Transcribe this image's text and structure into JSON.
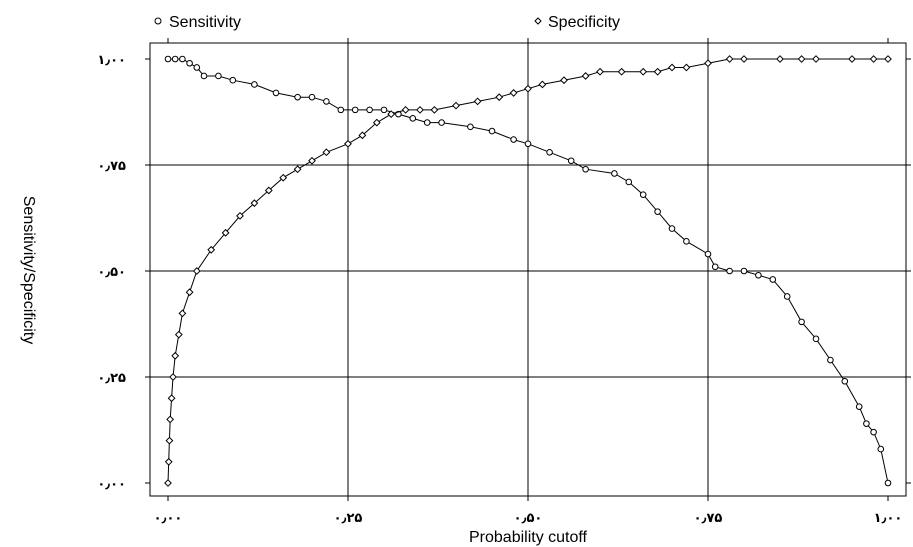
{
  "chart_data": {
    "type": "line",
    "title": "",
    "xlabel": "Probability cutoff",
    "ylabel": "Sensitivity/Specificity",
    "xlim": [
      0,
      1
    ],
    "ylim": [
      0,
      1
    ],
    "grid": true,
    "legend_position": "top",
    "x_ticks": [
      {
        "value": 0,
        "label": "۰٫۰۰"
      },
      {
        "value": 0.25,
        "label": "۰٫۲۵"
      },
      {
        "value": 0.5,
        "label": "۰٫۵۰"
      },
      {
        "value": 0.75,
        "label": "۰٫۷۵"
      },
      {
        "value": 1,
        "label": "۱٫۰۰"
      }
    ],
    "y_ticks": [
      {
        "value": 0,
        "label": "۰٫۰۰"
      },
      {
        "value": 0.25,
        "label": "۰٫۲۵"
      },
      {
        "value": 0.5,
        "label": "۰٫۵۰"
      },
      {
        "value": 0.75,
        "label": "۰٫۷۵"
      },
      {
        "value": 1,
        "label": "۱٫۰۰"
      }
    ],
    "series": [
      {
        "name": "Sensitivity",
        "marker": "circle",
        "color": "#000000",
        "points": [
          [
            0.0,
            1.0
          ],
          [
            0.01,
            1.0
          ],
          [
            0.02,
            1.0
          ],
          [
            0.03,
            0.99
          ],
          [
            0.04,
            0.98
          ],
          [
            0.05,
            0.96
          ],
          [
            0.07,
            0.96
          ],
          [
            0.09,
            0.95
          ],
          [
            0.12,
            0.94
          ],
          [
            0.15,
            0.92
          ],
          [
            0.18,
            0.91
          ],
          [
            0.2,
            0.91
          ],
          [
            0.22,
            0.9
          ],
          [
            0.24,
            0.88
          ],
          [
            0.26,
            0.88
          ],
          [
            0.28,
            0.88
          ],
          [
            0.3,
            0.88
          ],
          [
            0.32,
            0.87
          ],
          [
            0.34,
            0.86
          ],
          [
            0.36,
            0.85
          ],
          [
            0.38,
            0.85
          ],
          [
            0.42,
            0.84
          ],
          [
            0.45,
            0.83
          ],
          [
            0.48,
            0.81
          ],
          [
            0.5,
            0.8
          ],
          [
            0.53,
            0.78
          ],
          [
            0.56,
            0.76
          ],
          [
            0.58,
            0.74
          ],
          [
            0.62,
            0.73
          ],
          [
            0.64,
            0.71
          ],
          [
            0.66,
            0.68
          ],
          [
            0.68,
            0.64
          ],
          [
            0.7,
            0.6
          ],
          [
            0.72,
            0.57
          ],
          [
            0.75,
            0.54
          ],
          [
            0.76,
            0.51
          ],
          [
            0.78,
            0.5
          ],
          [
            0.8,
            0.5
          ],
          [
            0.82,
            0.49
          ],
          [
            0.84,
            0.48
          ],
          [
            0.86,
            0.44
          ],
          [
            0.88,
            0.38
          ],
          [
            0.9,
            0.34
          ],
          [
            0.92,
            0.29
          ],
          [
            0.94,
            0.24
          ],
          [
            0.96,
            0.18
          ],
          [
            0.97,
            0.14
          ],
          [
            0.98,
            0.12
          ],
          [
            0.99,
            0.08
          ],
          [
            1.0,
            0.0
          ]
        ]
      },
      {
        "name": "Specificity",
        "marker": "diamond",
        "color": "#000000",
        "points": [
          [
            0.0,
            0.0
          ],
          [
            0.001,
            0.05
          ],
          [
            0.002,
            0.1
          ],
          [
            0.003,
            0.15
          ],
          [
            0.005,
            0.2
          ],
          [
            0.007,
            0.25
          ],
          [
            0.01,
            0.3
          ],
          [
            0.015,
            0.35
          ],
          [
            0.02,
            0.4
          ],
          [
            0.03,
            0.45
          ],
          [
            0.04,
            0.5
          ],
          [
            0.06,
            0.55
          ],
          [
            0.08,
            0.59
          ],
          [
            0.1,
            0.63
          ],
          [
            0.12,
            0.66
          ],
          [
            0.14,
            0.69
          ],
          [
            0.16,
            0.72
          ],
          [
            0.18,
            0.74
          ],
          [
            0.2,
            0.76
          ],
          [
            0.22,
            0.78
          ],
          [
            0.25,
            0.8
          ],
          [
            0.27,
            0.82
          ],
          [
            0.29,
            0.85
          ],
          [
            0.31,
            0.87
          ],
          [
            0.33,
            0.88
          ],
          [
            0.35,
            0.88
          ],
          [
            0.37,
            0.88
          ],
          [
            0.4,
            0.89
          ],
          [
            0.43,
            0.9
          ],
          [
            0.46,
            0.91
          ],
          [
            0.48,
            0.92
          ],
          [
            0.5,
            0.93
          ],
          [
            0.52,
            0.94
          ],
          [
            0.55,
            0.95
          ],
          [
            0.58,
            0.96
          ],
          [
            0.6,
            0.97
          ],
          [
            0.63,
            0.97
          ],
          [
            0.66,
            0.97
          ],
          [
            0.68,
            0.97
          ],
          [
            0.7,
            0.98
          ],
          [
            0.72,
            0.98
          ],
          [
            0.75,
            0.99
          ],
          [
            0.78,
            1.0
          ],
          [
            0.8,
            1.0
          ],
          [
            0.85,
            1.0
          ],
          [
            0.88,
            1.0
          ],
          [
            0.9,
            1.0
          ],
          [
            0.95,
            1.0
          ],
          [
            0.98,
            1.0
          ],
          [
            1.0,
            1.0
          ]
        ]
      }
    ]
  }
}
